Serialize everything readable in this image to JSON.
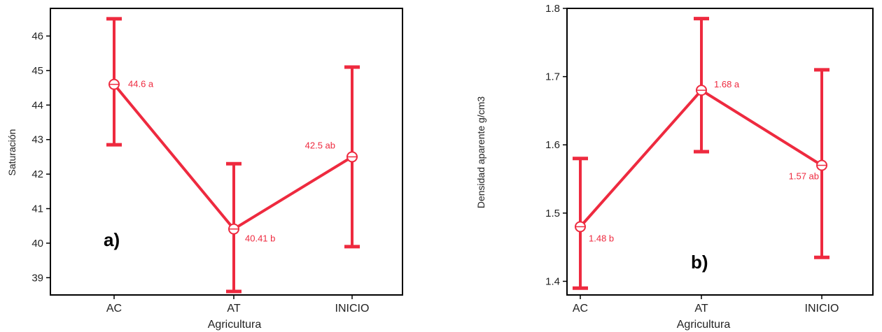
{
  "chart_data": [
    {
      "type": "line",
      "panel_label": "a)",
      "xlabel": "Agricultura",
      "ylabel": "Saturación",
      "categories": [
        "AC",
        "AT",
        "INICIO"
      ],
      "ylim": [
        38.5,
        46.8
      ],
      "yticks": [
        39,
        40,
        41,
        42,
        43,
        44,
        45,
        46
      ],
      "series": [
        {
          "values": [
            44.6,
            40.41,
            42.5
          ],
          "error_low": [
            42.85,
            38.6,
            39.9
          ],
          "error_high": [
            46.5,
            42.3,
            45.1
          ],
          "labels": [
            "44.6 a",
            "40.41 b",
            "42.5 ab"
          ]
        }
      ],
      "grid": false,
      "color": "#ee2a3f"
    },
    {
      "type": "line",
      "panel_label": "b)",
      "xlabel": "Agricultura",
      "ylabel": "Densidad  aparente g/cm3",
      "categories": [
        "AC",
        "AT",
        "INICIO"
      ],
      "ylim": [
        1.38,
        1.8
      ],
      "yticks": [
        1.4,
        1.5,
        1.6,
        1.7,
        1.8
      ],
      "series": [
        {
          "values": [
            1.48,
            1.68,
            1.57
          ],
          "error_low": [
            1.39,
            1.59,
            1.435
          ],
          "error_high": [
            1.58,
            1.785,
            1.71
          ],
          "labels": [
            "1.48 b",
            "1.68 a",
            "1.57 ab"
          ]
        }
      ],
      "grid": false,
      "color": "#ee2a3f"
    }
  ]
}
